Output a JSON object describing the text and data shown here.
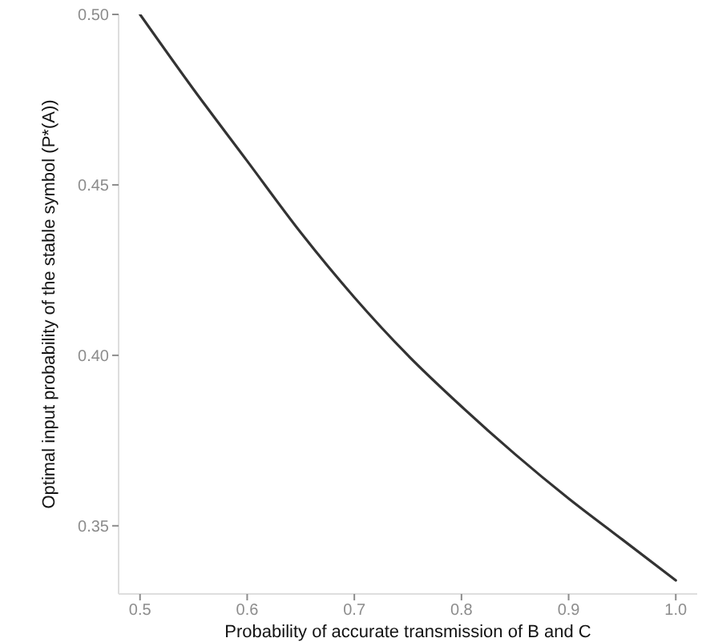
{
  "chart_data": {
    "type": "line",
    "xlabel": "Probability of accurate transmission of B and C",
    "ylabel": "Optimal input probability of the stable symbol (P*(A))",
    "x": [
      0.5,
      0.55,
      0.6,
      0.65,
      0.7,
      0.75,
      0.8,
      0.85,
      0.9,
      0.95,
      1.0
    ],
    "values": [
      0.5,
      0.478,
      0.457,
      0.436,
      0.417,
      0.4,
      0.385,
      0.371,
      0.358,
      0.346,
      0.334
    ],
    "color": "#333333",
    "line_style": "solid",
    "xlim": [
      0.48,
      1.02
    ],
    "xticks": [
      0.5,
      0.6,
      0.7,
      0.8,
      0.9,
      {
        "value": 1.0,
        "label": "1.0"
      }
    ],
    "ylim": [
      0.33,
      0.5
    ],
    "yticks": [
      0.35,
      {
        "value": 0.4,
        "label": "0.40"
      },
      0.45,
      {
        "value": 0.5,
        "label": "0.50"
      }
    ]
  }
}
